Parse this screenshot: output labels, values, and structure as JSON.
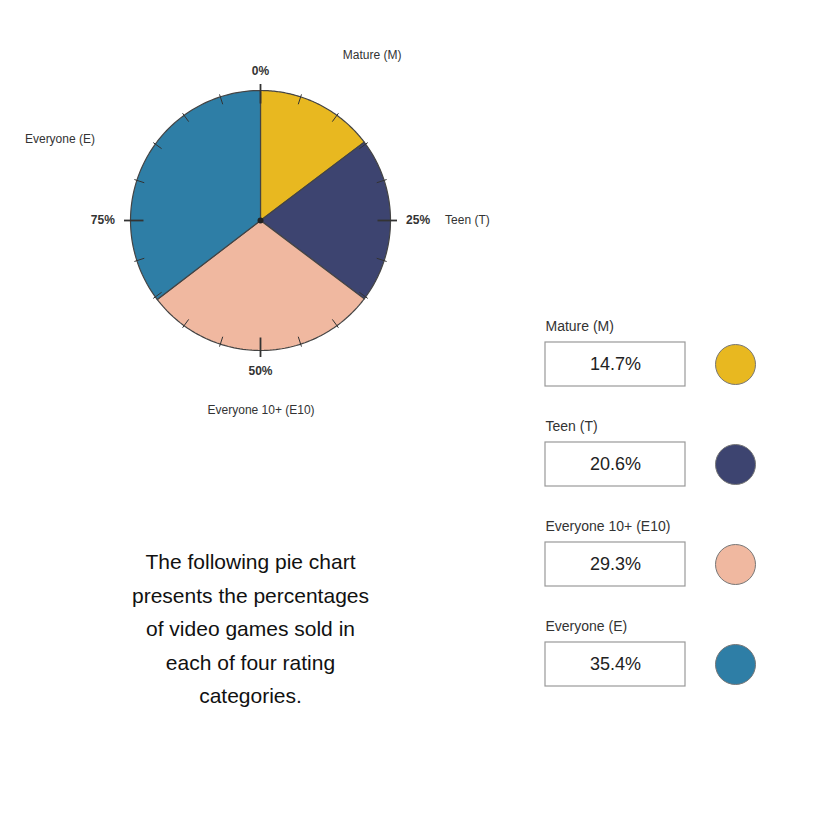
{
  "chart_data": {
    "type": "pie",
    "categories": [
      "Mature (M)",
      "Teen (T)",
      "Everyone 10+ (E10)",
      "Everyone (E)"
    ],
    "values": [
      14.7,
      20.6,
      29.3,
      35.4
    ],
    "value_labels": [
      "14.7%",
      "20.6%",
      "29.3%",
      "35.4%"
    ],
    "colors": [
      "#E8B820",
      "#3D4470",
      "#F0B8A0",
      "#2E7EA6"
    ],
    "ticks": [
      {
        "value": 0,
        "label": "0%"
      },
      {
        "value": 5,
        "label": null
      },
      {
        "value": 10,
        "label": null
      },
      {
        "value": 15,
        "label": null
      },
      {
        "value": 20,
        "label": null
      },
      {
        "value": 25,
        "label": "25%"
      },
      {
        "value": 30,
        "label": null
      },
      {
        "value": 35,
        "label": null
      },
      {
        "value": 40,
        "label": null
      },
      {
        "value": 45,
        "label": null
      },
      {
        "value": 50,
        "label": "50%"
      },
      {
        "value": 55,
        "label": null
      },
      {
        "value": 60,
        "label": null
      },
      {
        "value": 65,
        "label": null
      },
      {
        "value": 70,
        "label": null
      },
      {
        "value": 75,
        "label": "75%"
      },
      {
        "value": 80,
        "label": null
      },
      {
        "value": 85,
        "label": null
      },
      {
        "value": 90,
        "label": null
      },
      {
        "value": 95,
        "label": null
      }
    ],
    "legend": "right",
    "annotations": [
      "The following pie chart\npresents the percentages\nof video games sold in\neach of four rating\ncategories."
    ]
  }
}
